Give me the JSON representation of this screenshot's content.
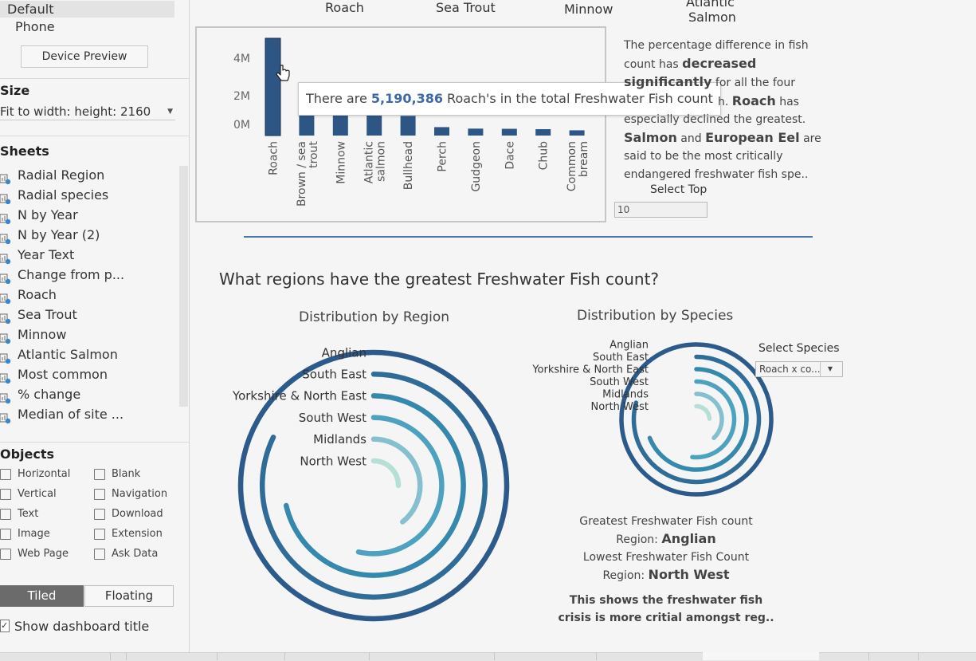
{
  "sidebar": {
    "device_items": [
      "Default",
      "Phone"
    ],
    "device_preview_label": "Device Preview",
    "size_header": "Size",
    "size_value": "Fit to width: height: 2160",
    "sheets_header": "Sheets",
    "sheets": [
      "Radial Region",
      "Radial species",
      "N by Year",
      "N by Year (2)",
      "Year Text",
      "Change from p...",
      "Roach",
      "Sea Trout",
      "Minnow",
      "Atlantic Salmon",
      "Most common",
      "% change",
      "Median of site ..."
    ],
    "objects_header": "Objects",
    "objects": [
      {
        "label": "Horizontal",
        "icon": "horizontal-container-icon"
      },
      {
        "label": "Blank",
        "icon": "blank-icon"
      },
      {
        "label": "Vertical",
        "icon": "vertical-container-icon"
      },
      {
        "label": "Navigation",
        "icon": "navigation-icon"
      },
      {
        "label": "Text",
        "icon": "text-icon"
      },
      {
        "label": "Download",
        "icon": "download-icon"
      },
      {
        "label": "Image",
        "icon": "image-icon"
      },
      {
        "label": "Extension",
        "icon": "extension-icon"
      },
      {
        "label": "Web Page",
        "icon": "web-page-icon"
      },
      {
        "label": "Ask Data",
        "icon": "ask-data-icon"
      }
    ],
    "tiled_label": "Tiled",
    "floating_label": "Floating",
    "show_title_label": "Show dashboard title"
  },
  "species_headers": [
    "Roach",
    "Sea Trout",
    "Minnow",
    "Atlantic",
    "Salmon"
  ],
  "bar_chart": {
    "tick_labels": [
      "4M",
      "2M",
      "0M"
    ],
    "tooltip_prefix": "There are ",
    "tooltip_value": "5,190,386",
    "tooltip_suffix": " Roach's in the total Freshwater Fish count",
    "bar_color": "#2e5685",
    "bar_labels": [
      [
        "Roach"
      ],
      [
        "Brown / sea",
        "trout"
      ],
      [
        "Minnow"
      ],
      [
        "Atlantic",
        "salmon"
      ],
      [
        "Bullhead"
      ],
      [
        "Perch"
      ],
      [
        "Gudgeon"
      ],
      [
        "Dace"
      ],
      [
        "Chub"
      ],
      [
        "Common",
        "bream"
      ]
    ]
  },
  "description": {
    "l1": "The percentage difference in fish",
    "l2a": "count has ",
    "l2b": "decreased",
    "l3a": "significantly",
    "l3b": " for all the four",
    "l4a": "h. ",
    "l4b": "Roach",
    "l4c": " has",
    "l5": "especially declined the greatest.",
    "l6a": "Salmon",
    "l6b": " and ",
    "l6c": "European Eel",
    "l6d": " are",
    "l7": "said to be the most critically",
    "l8": "endangered freshwater fish spe.."
  },
  "select_top": {
    "label": "Select Top",
    "value": "10"
  },
  "section_title": "What regions have the greatest Freshwater Fish count?",
  "chart_data": [
    {
      "type": "bar",
      "categories": [
        "Roach",
        "Brown / sea trout",
        "Minnow",
        "Atlantic salmon",
        "Bullhead",
        "Perch",
        "Gudgeon",
        "Dace",
        "Chub",
        "Common bream"
      ],
      "values": [
        5190386,
        1400000,
        1150000,
        1100000,
        1050000,
        450000,
        370000,
        360000,
        340000,
        280000
      ],
      "ylim": [
        0,
        5190386
      ],
      "y_ticks": [
        "4M",
        "2M",
        "0M"
      ]
    },
    {
      "type": "radial-bar",
      "title": "Distribution by Region",
      "categories": [
        "Anglian",
        "South East",
        "Yorkshire & North East",
        "South West",
        "Midlands",
        "North West"
      ],
      "values": [
        280,
        230,
        200,
        150,
        110,
        70
      ],
      "colors": [
        "#2c5a8a",
        "#2f6d98",
        "#3489ad",
        "#4da3bf",
        "#86c0cf",
        "#b6e0d6"
      ],
      "max_value": 280
    },
    {
      "type": "radial-bar",
      "title": "Distribution by Species",
      "categories": [
        "Anglian",
        "South East",
        "Yorkshire & North East",
        "South West",
        "Midlands",
        "North West"
      ],
      "values": [
        290,
        230,
        200,
        150,
        110,
        70
      ],
      "colors": [
        "#2c5a8a",
        "#2f6d98",
        "#3489ad",
        "#4da3bf",
        "#86c0cf",
        "#b6e0d6"
      ],
      "max_value": 290
    }
  ],
  "select_species": {
    "label": "Select Species",
    "value": "Roach x co..."
  },
  "summary": {
    "greatest_label": "Greatest Freshwater Fish count",
    "greatest_region_prefix": "Region: ",
    "greatest_region": "Anglian",
    "lowest_label": "Lowest Freshwater Fish Count",
    "lowest_region_prefix": "Region: ",
    "lowest_region": "North West",
    "note1": "This shows the freshwater fish",
    "note2": "crisis is more critial amongst reg.."
  }
}
